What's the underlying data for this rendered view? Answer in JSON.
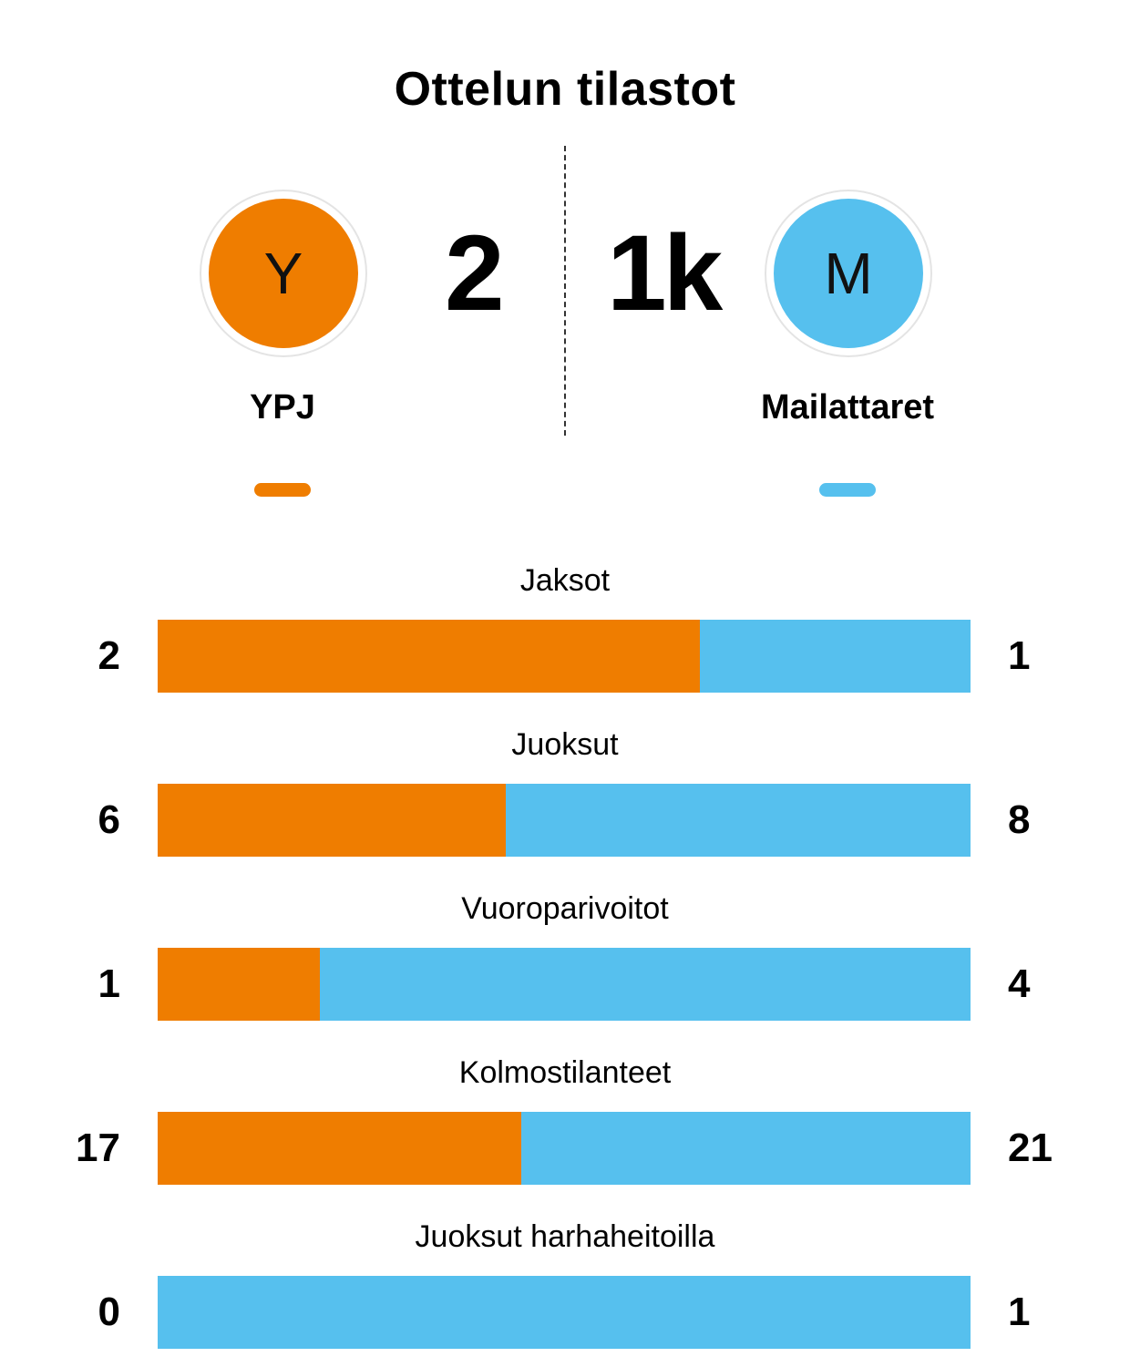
{
  "title": "Ottelun tilastot",
  "colors": {
    "home": "#ef7d00",
    "away": "#56c0ee"
  },
  "home": {
    "name": "YPJ",
    "logo_letter": "Y",
    "score": "2"
  },
  "away": {
    "name": "Mailattaret",
    "logo_letter": "M",
    "score": "1k"
  },
  "chart_data": {
    "type": "bar",
    "orientation": "horizontal-stacked-share",
    "title": "Ottelun tilastot",
    "categories": [
      "Jaksot",
      "Juoksut",
      "Vuoroparivoitot",
      "Kolmostilanteet",
      "Juoksut harhaheitoilla"
    ],
    "series": [
      {
        "name": "YPJ",
        "values": [
          2,
          6,
          1,
          17,
          0
        ]
      },
      {
        "name": "Mailattaret",
        "values": [
          1,
          8,
          4,
          21,
          1
        ]
      }
    ]
  }
}
